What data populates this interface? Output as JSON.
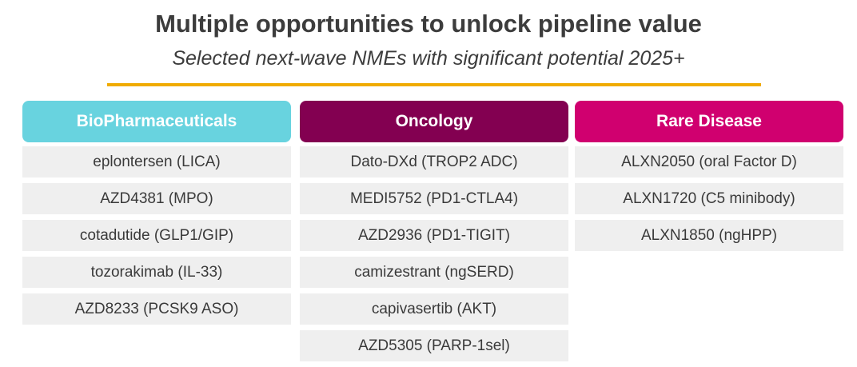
{
  "header": {
    "title": "Multiple opportunities to unlock pipeline value",
    "subtitle": "Selected next-wave NMEs with significant potential 2025+"
  },
  "accent_color": "#f0ab00",
  "columns": [
    {
      "label": "BioPharmaceuticals",
      "color": "#68d3df",
      "items": [
        "eplontersen (LICA)",
        "AZD4381 (MPO)",
        "cotadutide (GLP1/GIP)",
        "tozorakimab (IL-33)",
        "AZD8233 (PCSK9 ASO)"
      ]
    },
    {
      "label": "Oncology",
      "color": "#830051",
      "items": [
        "Dato-DXd (TROP2 ADC)",
        "MEDI5752 (PD1-CTLA4)",
        "AZD2936 (PD1-TIGIT)",
        "camizestrant (ngSERD)",
        "capivasertib (AKT)",
        "AZD5305 (PARP-1sel)"
      ]
    },
    {
      "label": "Rare Disease",
      "color": "#d0006f",
      "items": [
        "ALXN2050 (oral Factor D)",
        "ALXN1720 (C5 minibody)",
        "ALXN1850 (ngHPP)"
      ]
    }
  ]
}
